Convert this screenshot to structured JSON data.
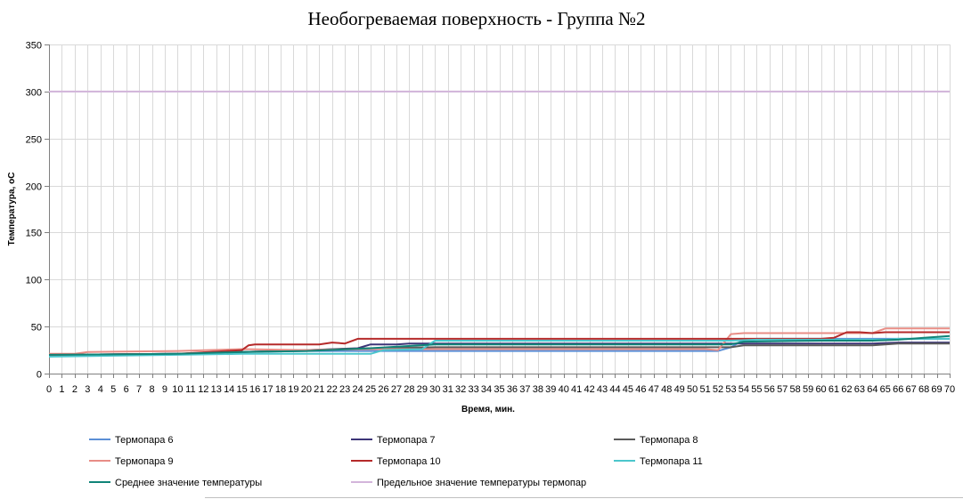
{
  "chart_data": {
    "type": "line",
    "title": "Необогреваемая поверхность - Группа №2",
    "xlabel": "Время, мин.",
    "ylabel": "Температура, оС",
    "xlim": [
      0,
      70
    ],
    "ylim": [
      0,
      350
    ],
    "yticks": [
      0,
      50,
      100,
      150,
      200,
      250,
      300,
      350
    ],
    "grid": true,
    "legend_position": "bottom",
    "series": [
      {
        "name": "Термопара 6",
        "color": "#5b8fd6",
        "points": [
          [
            0,
            20
          ],
          [
            10,
            21
          ],
          [
            15,
            23
          ],
          [
            20,
            24
          ],
          [
            25,
            24
          ],
          [
            51,
            24
          ],
          [
            52,
            24
          ],
          [
            53,
            28
          ],
          [
            54,
            36
          ],
          [
            55,
            37
          ],
          [
            70,
            37
          ]
        ]
      },
      {
        "name": "Термопара 7",
        "color": "#3d3578",
        "points": [
          [
            0,
            20
          ],
          [
            10,
            21
          ],
          [
            15,
            23
          ],
          [
            20,
            25
          ],
          [
            24,
            27
          ],
          [
            25,
            31
          ],
          [
            27,
            31
          ],
          [
            28,
            32
          ],
          [
            53,
            32
          ],
          [
            54,
            32
          ],
          [
            64,
            32
          ],
          [
            66,
            33
          ],
          [
            70,
            33
          ]
        ]
      },
      {
        "name": "Термопара 8",
        "color": "#5a5a5a",
        "points": [
          [
            0,
            20
          ],
          [
            10,
            21
          ],
          [
            15,
            23
          ],
          [
            20,
            25
          ],
          [
            25,
            27
          ],
          [
            30,
            28
          ],
          [
            53,
            28
          ],
          [
            54,
            30
          ],
          [
            64,
            30
          ],
          [
            66,
            32
          ],
          [
            70,
            32
          ]
        ]
      },
      {
        "name": "Термопара 9",
        "color": "#e88d86",
        "points": [
          [
            0,
            21
          ],
          [
            2,
            21
          ],
          [
            3,
            23
          ],
          [
            10,
            24
          ],
          [
            15,
            26
          ],
          [
            20,
            25
          ],
          [
            25,
            26
          ],
          [
            30,
            26
          ],
          [
            51,
            26
          ],
          [
            52,
            25
          ],
          [
            53,
            42
          ],
          [
            54,
            43
          ],
          [
            64,
            43
          ],
          [
            65,
            48
          ],
          [
            67,
            48
          ],
          [
            70,
            48
          ]
        ]
      },
      {
        "name": "Термопара 10",
        "color": "#b52a2a",
        "points": [
          [
            0,
            20
          ],
          [
            10,
            21
          ],
          [
            15,
            25
          ],
          [
            15.5,
            30
          ],
          [
            16,
            31
          ],
          [
            20,
            31
          ],
          [
            21,
            31
          ],
          [
            22,
            33
          ],
          [
            23,
            32
          ],
          [
            24,
            37
          ],
          [
            25,
            37
          ],
          [
            55,
            37
          ],
          [
            60,
            37
          ],
          [
            61,
            38
          ],
          [
            62,
            44
          ],
          [
            63,
            44
          ],
          [
            64,
            43
          ],
          [
            65,
            44
          ],
          [
            70,
            44
          ]
        ]
      },
      {
        "name": "Термопара 11",
        "color": "#4cc6cc",
        "points": [
          [
            0,
            18
          ],
          [
            5,
            19
          ],
          [
            10,
            20
          ],
          [
            15,
            21
          ],
          [
            25,
            21
          ],
          [
            26,
            25
          ],
          [
            29,
            26
          ],
          [
            30,
            35
          ],
          [
            50,
            35
          ],
          [
            53,
            35
          ],
          [
            55,
            36
          ],
          [
            65,
            36
          ],
          [
            66,
            37
          ],
          [
            70,
            37
          ]
        ]
      },
      {
        "name": "Среднее значение температуры",
        "color": "#108478",
        "points": [
          [
            0,
            20
          ],
          [
            10,
            21
          ],
          [
            15,
            23
          ],
          [
            20,
            24
          ],
          [
            25,
            27
          ],
          [
            30,
            31
          ],
          [
            53,
            31
          ],
          [
            54,
            34
          ],
          [
            60,
            35
          ],
          [
            62,
            35
          ],
          [
            64,
            35
          ],
          [
            66,
            36
          ],
          [
            67,
            37
          ],
          [
            68,
            38
          ],
          [
            70,
            40
          ]
        ]
      },
      {
        "name": "Предельное значение температуры термопар",
        "color": "#d3b5db",
        "points": [
          [
            0,
            300
          ],
          [
            70,
            300
          ]
        ]
      }
    ]
  }
}
